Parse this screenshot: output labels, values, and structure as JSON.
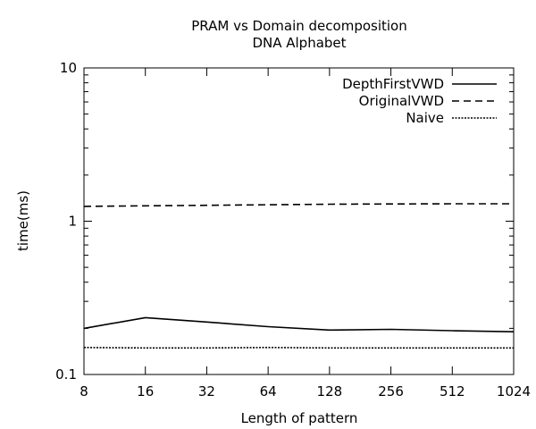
{
  "chart_data": {
    "type": "line",
    "title": "PRAM vs Domain decomposition",
    "subtitle": "DNA Alphabet",
    "xlabel": "Length of pattern",
    "ylabel": "time(ms)",
    "x_scale": "log2",
    "y_scale": "log10",
    "xlim": [
      8,
      1024
    ],
    "ylim": [
      0.1,
      10
    ],
    "x": [
      8,
      16,
      32,
      64,
      128,
      256,
      512,
      1024
    ],
    "x_tick_labels": [
      "8",
      "16",
      "32",
      "64",
      "128",
      "256",
      "512",
      "1024"
    ],
    "y_ticks": [
      0.1,
      1,
      10
    ],
    "y_tick_labels": [
      "0.1",
      "1",
      "10"
    ],
    "legend_position": "top-right",
    "grid": false,
    "series": [
      {
        "name": "DepthFirstVWD",
        "style": "solid",
        "color": "#000000",
        "values": [
          0.2,
          0.235,
          0.22,
          0.205,
          0.195,
          0.197,
          0.193,
          0.19
        ]
      },
      {
        "name": "OriginalVWD",
        "style": "dashed",
        "color": "#000000",
        "values": [
          1.25,
          1.26,
          1.27,
          1.28,
          1.29,
          1.295,
          1.3,
          1.3
        ]
      },
      {
        "name": "Naive",
        "style": "dotted",
        "color": "#000000",
        "values": [
          0.15,
          0.149,
          0.149,
          0.15,
          0.149,
          0.149,
          0.149,
          0.149
        ]
      }
    ]
  }
}
